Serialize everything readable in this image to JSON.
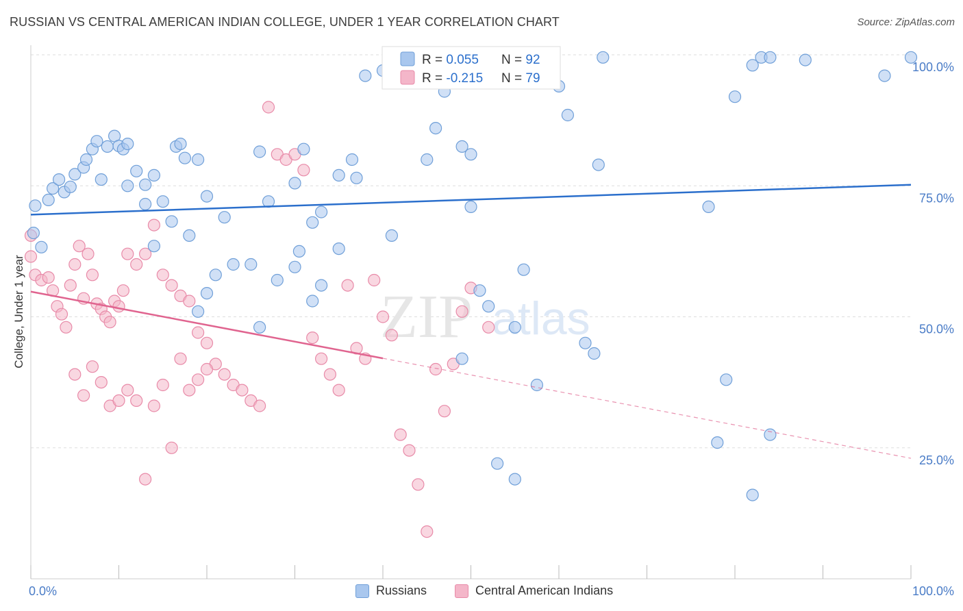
{
  "title": "RUSSIAN VS CENTRAL AMERICAN INDIAN COLLEGE, UNDER 1 YEAR CORRELATION CHART",
  "source": "Source: ZipAtlas.com",
  "watermark": {
    "zip": "ZIP",
    "atlas": "atlas"
  },
  "colors": {
    "blue_fill": "#a9c7ee",
    "blue_stroke": "#6f9fd8",
    "blue_line": "#2b6fcc",
    "pink_fill": "#f4b6c9",
    "pink_stroke": "#e88aa8",
    "pink_line": "#e0648f",
    "tick_label": "#4a7cc7",
    "grid": "#dddddd"
  },
  "stats_legend": [
    {
      "r_label": "R = ",
      "r_value": "0.055",
      "n_label": "N = ",
      "n_value": "92"
    },
    {
      "r_label": "R = ",
      "r_value": "-0.215",
      "n_label": "N = ",
      "n_value": "79"
    }
  ],
  "bottom_legend": [
    "Russians",
    "Central American Indians"
  ],
  "chart_data": {
    "type": "scatter",
    "xlabel": "",
    "ylabel": "College, Under 1 year",
    "xlim": [
      0,
      1
    ],
    "ylim": [
      0,
      1
    ],
    "x_tick_labels": [
      "0.0%",
      "100.0%"
    ],
    "y_ticks": [
      {
        "value": 1.0,
        "label": "100.0%"
      },
      {
        "value": 0.75,
        "label": "75.0%"
      },
      {
        "value": 0.5,
        "label": "50.0%"
      },
      {
        "value": 0.25,
        "label": "25.0%"
      }
    ],
    "grid": true,
    "legend_placement": "top-center",
    "series": [
      {
        "name": "Russians",
        "trend": {
          "x0": 0.0,
          "y0": 0.695,
          "x1": 1.0,
          "y1": 0.752
        },
        "points": [
          [
            0.02,
            0.723
          ],
          [
            0.005,
            0.712
          ],
          [
            0.003,
            0.66
          ],
          [
            0.012,
            0.633
          ],
          [
            0.025,
            0.745
          ],
          [
            0.032,
            0.762
          ],
          [
            0.038,
            0.738
          ],
          [
            0.045,
            0.748
          ],
          [
            0.05,
            0.772
          ],
          [
            0.06,
            0.785
          ],
          [
            0.063,
            0.8
          ],
          [
            0.08,
            0.762
          ],
          [
            0.07,
            0.82
          ],
          [
            0.075,
            0.835
          ],
          [
            0.087,
            0.825
          ],
          [
            0.095,
            0.845
          ],
          [
            0.1,
            0.826
          ],
          [
            0.105,
            0.82
          ],
          [
            0.11,
            0.83
          ],
          [
            0.11,
            0.75
          ],
          [
            0.12,
            0.778
          ],
          [
            0.13,
            0.752
          ],
          [
            0.14,
            0.77
          ],
          [
            0.13,
            0.715
          ],
          [
            0.15,
            0.72
          ],
          [
            0.16,
            0.682
          ],
          [
            0.14,
            0.635
          ],
          [
            0.165,
            0.825
          ],
          [
            0.175,
            0.803
          ],
          [
            0.17,
            0.83
          ],
          [
            0.19,
            0.8
          ],
          [
            0.2,
            0.73
          ],
          [
            0.21,
            0.58
          ],
          [
            0.2,
            0.545
          ],
          [
            0.19,
            0.51
          ],
          [
            0.18,
            0.655
          ],
          [
            0.22,
            0.69
          ],
          [
            0.23,
            0.6
          ],
          [
            0.25,
            0.6
          ],
          [
            0.27,
            0.72
          ],
          [
            0.26,
            0.815
          ],
          [
            0.3,
            0.755
          ],
          [
            0.31,
            0.82
          ],
          [
            0.32,
            0.68
          ],
          [
            0.33,
            0.7
          ],
          [
            0.305,
            0.625
          ],
          [
            0.3,
            0.595
          ],
          [
            0.28,
            0.57
          ],
          [
            0.26,
            0.48
          ],
          [
            0.35,
            0.77
          ],
          [
            0.365,
            0.8
          ],
          [
            0.37,
            0.765
          ],
          [
            0.35,
            0.63
          ],
          [
            0.33,
            0.56
          ],
          [
            0.32,
            0.53
          ],
          [
            0.38,
            0.96
          ],
          [
            0.4,
            0.97
          ],
          [
            0.41,
            0.655
          ],
          [
            0.45,
            0.8
          ],
          [
            0.46,
            0.86
          ],
          [
            0.47,
            0.93
          ],
          [
            0.49,
            0.825
          ],
          [
            0.5,
            0.71
          ],
          [
            0.5,
            0.81
          ],
          [
            0.51,
            0.55
          ],
          [
            0.55,
            0.48
          ],
          [
            0.56,
            0.59
          ],
          [
            0.52,
            0.52
          ],
          [
            0.49,
            0.42
          ],
          [
            0.575,
            0.37
          ],
          [
            0.6,
            0.94
          ],
          [
            0.61,
            0.885
          ],
          [
            0.63,
            0.45
          ],
          [
            0.64,
            0.43
          ],
          [
            0.645,
            0.79
          ],
          [
            0.82,
            0.16
          ],
          [
            0.78,
            0.26
          ],
          [
            0.77,
            0.71
          ],
          [
            0.79,
            0.38
          ],
          [
            0.53,
            0.22
          ],
          [
            0.55,
            0.19
          ],
          [
            0.84,
            0.275
          ],
          [
            0.5,
            0.995
          ],
          [
            0.52,
            0.995
          ],
          [
            0.83,
            0.995
          ],
          [
            0.84,
            0.995
          ],
          [
            0.88,
            0.99
          ],
          [
            1.0,
            0.995
          ],
          [
            0.97,
            0.96
          ],
          [
            0.82,
            0.98
          ],
          [
            0.8,
            0.92
          ],
          [
            0.65,
            0.995
          ]
        ]
      },
      {
        "name": "Central American Indians",
        "trend": {
          "x0": 0.0,
          "y0": 0.548,
          "x1": 1.0,
          "y1": 0.23
        },
        "trend_solid_until": 0.4,
        "points": [
          [
            0.0,
            0.655
          ],
          [
            0.0,
            0.615
          ],
          [
            0.005,
            0.58
          ],
          [
            0.012,
            0.57
          ],
          [
            0.02,
            0.575
          ],
          [
            0.025,
            0.55
          ],
          [
            0.03,
            0.52
          ],
          [
            0.035,
            0.505
          ],
          [
            0.04,
            0.48
          ],
          [
            0.045,
            0.56
          ],
          [
            0.05,
            0.6
          ],
          [
            0.055,
            0.635
          ],
          [
            0.06,
            0.535
          ],
          [
            0.065,
            0.62
          ],
          [
            0.07,
            0.58
          ],
          [
            0.075,
            0.525
          ],
          [
            0.08,
            0.515
          ],
          [
            0.085,
            0.5
          ],
          [
            0.09,
            0.49
          ],
          [
            0.095,
            0.53
          ],
          [
            0.1,
            0.52
          ],
          [
            0.105,
            0.55
          ],
          [
            0.11,
            0.62
          ],
          [
            0.12,
            0.6
          ],
          [
            0.13,
            0.62
          ],
          [
            0.14,
            0.675
          ],
          [
            0.15,
            0.58
          ],
          [
            0.16,
            0.56
          ],
          [
            0.17,
            0.54
          ],
          [
            0.18,
            0.53
          ],
          [
            0.19,
            0.47
          ],
          [
            0.2,
            0.45
          ],
          [
            0.21,
            0.41
          ],
          [
            0.22,
            0.39
          ],
          [
            0.23,
            0.37
          ],
          [
            0.24,
            0.36
          ],
          [
            0.25,
            0.34
          ],
          [
            0.26,
            0.33
          ],
          [
            0.27,
            0.9
          ],
          [
            0.28,
            0.81
          ],
          [
            0.29,
            0.8
          ],
          [
            0.3,
            0.81
          ],
          [
            0.31,
            0.78
          ],
          [
            0.32,
            0.46
          ],
          [
            0.33,
            0.42
          ],
          [
            0.34,
            0.39
          ],
          [
            0.35,
            0.36
          ],
          [
            0.36,
            0.56
          ],
          [
            0.37,
            0.44
          ],
          [
            0.38,
            0.42
          ],
          [
            0.39,
            0.57
          ],
          [
            0.4,
            0.5
          ],
          [
            0.41,
            0.465
          ],
          [
            0.42,
            0.275
          ],
          [
            0.43,
            0.245
          ],
          [
            0.44,
            0.18
          ],
          [
            0.45,
            0.09
          ],
          [
            0.46,
            0.4
          ],
          [
            0.47,
            0.32
          ],
          [
            0.48,
            0.41
          ],
          [
            0.49,
            0.51
          ],
          [
            0.5,
            0.555
          ],
          [
            0.52,
            0.48
          ],
          [
            0.05,
            0.39
          ],
          [
            0.06,
            0.35
          ],
          [
            0.07,
            0.405
          ],
          [
            0.08,
            0.375
          ],
          [
            0.09,
            0.33
          ],
          [
            0.1,
            0.34
          ],
          [
            0.11,
            0.36
          ],
          [
            0.12,
            0.34
          ],
          [
            0.13,
            0.19
          ],
          [
            0.14,
            0.33
          ],
          [
            0.15,
            0.37
          ],
          [
            0.16,
            0.25
          ],
          [
            0.17,
            0.42
          ],
          [
            0.18,
            0.36
          ],
          [
            0.19,
            0.38
          ],
          [
            0.2,
            0.4
          ]
        ]
      }
    ]
  }
}
